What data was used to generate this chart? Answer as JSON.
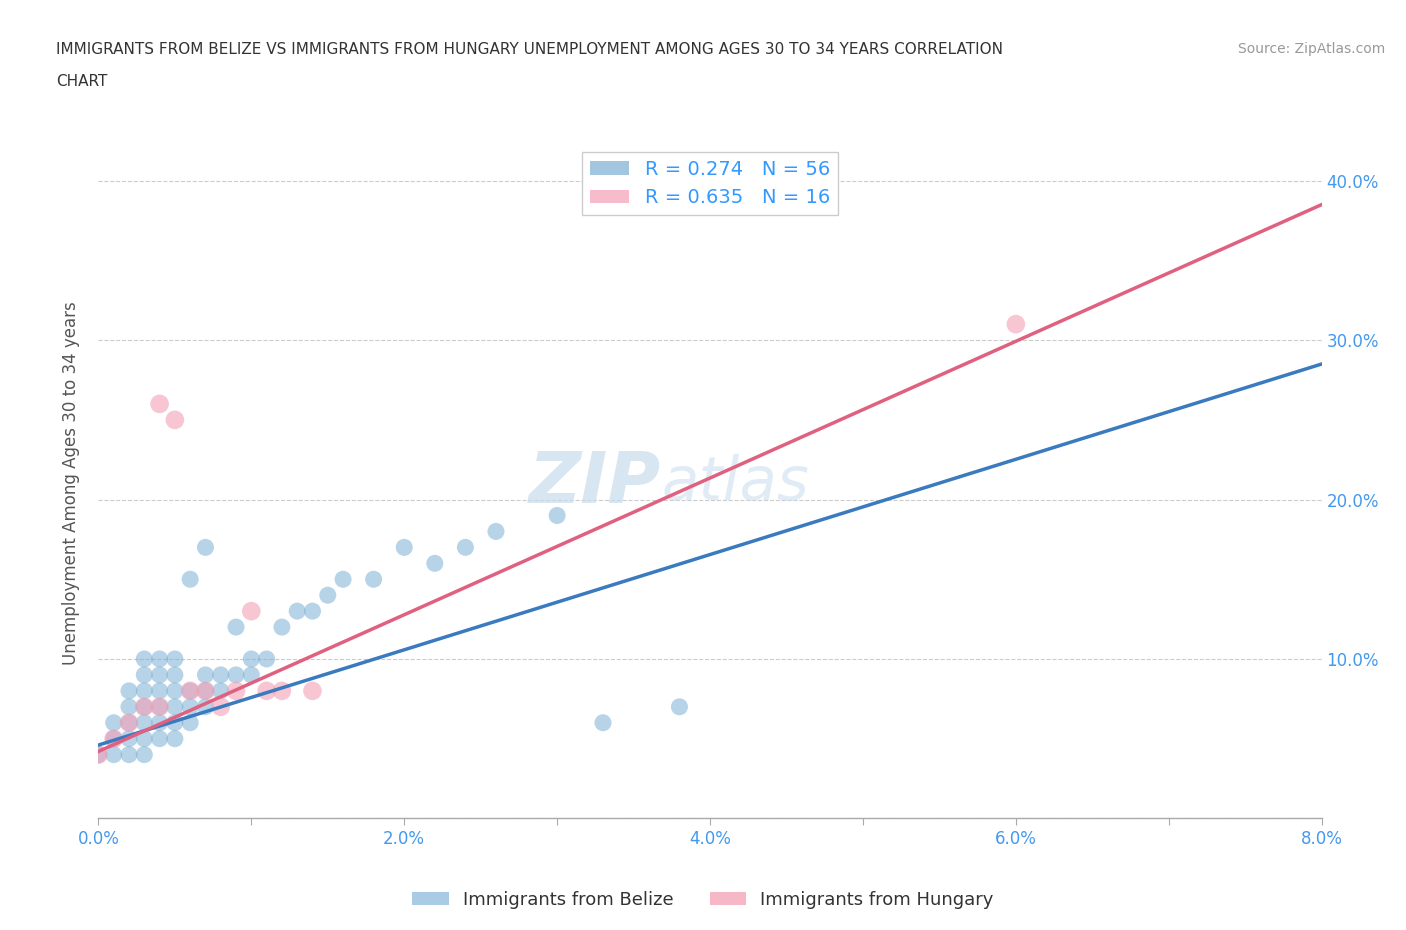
{
  "title_line1": "IMMIGRANTS FROM BELIZE VS IMMIGRANTS FROM HUNGARY UNEMPLOYMENT AMONG AGES 30 TO 34 YEARS CORRELATION",
  "title_line2": "CHART",
  "source_text": "Source: ZipAtlas.com",
  "ylabel": "Unemployment Among Ages 30 to 34 years",
  "xlim": [
    0.0,
    0.08
  ],
  "ylim": [
    0.0,
    0.42
  ],
  "xticks": [
    0.0,
    0.01,
    0.02,
    0.03,
    0.04,
    0.05,
    0.06,
    0.07,
    0.08
  ],
  "xticklabels": [
    "0.0%",
    "",
    "2.0%",
    "",
    "4.0%",
    "",
    "6.0%",
    "",
    "8.0%"
  ],
  "ytick_positions": [
    0.0,
    0.1,
    0.2,
    0.3,
    0.4
  ],
  "ytick_labels_left": [
    "",
    "",
    "",
    "",
    ""
  ],
  "ytick_labels_right": [
    "",
    "10.0%",
    "20.0%",
    "30.0%",
    "40.0%"
  ],
  "belize_color": "#7bafd4",
  "hungary_color": "#f4a0b5",
  "belize_R": 0.274,
  "belize_N": 56,
  "hungary_R": 0.635,
  "hungary_N": 16,
  "watermark_zip": "ZIP",
  "watermark_atlas": "atlas",
  "belize_x": [
    0.0,
    0.001,
    0.001,
    0.001,
    0.002,
    0.002,
    0.002,
    0.002,
    0.002,
    0.003,
    0.003,
    0.003,
    0.003,
    0.003,
    0.003,
    0.003,
    0.004,
    0.004,
    0.004,
    0.004,
    0.004,
    0.004,
    0.005,
    0.005,
    0.005,
    0.005,
    0.005,
    0.005,
    0.006,
    0.006,
    0.006,
    0.006,
    0.007,
    0.007,
    0.007,
    0.007,
    0.008,
    0.008,
    0.009,
    0.009,
    0.01,
    0.01,
    0.011,
    0.012,
    0.013,
    0.014,
    0.015,
    0.016,
    0.018,
    0.02,
    0.022,
    0.024,
    0.026,
    0.03,
    0.033,
    0.038
  ],
  "belize_y": [
    0.04,
    0.04,
    0.05,
    0.06,
    0.04,
    0.05,
    0.06,
    0.07,
    0.08,
    0.04,
    0.05,
    0.06,
    0.07,
    0.08,
    0.09,
    0.1,
    0.05,
    0.06,
    0.07,
    0.08,
    0.09,
    0.1,
    0.05,
    0.06,
    0.07,
    0.08,
    0.09,
    0.1,
    0.06,
    0.07,
    0.08,
    0.15,
    0.07,
    0.08,
    0.09,
    0.17,
    0.08,
    0.09,
    0.09,
    0.12,
    0.09,
    0.1,
    0.1,
    0.12,
    0.13,
    0.13,
    0.14,
    0.15,
    0.15,
    0.17,
    0.16,
    0.17,
    0.18,
    0.19,
    0.06,
    0.07
  ],
  "hungary_x": [
    0.0,
    0.001,
    0.002,
    0.003,
    0.004,
    0.004,
    0.005,
    0.006,
    0.007,
    0.008,
    0.009,
    0.01,
    0.011,
    0.012,
    0.014,
    0.06
  ],
  "hungary_y": [
    0.04,
    0.05,
    0.06,
    0.07,
    0.26,
    0.07,
    0.25,
    0.08,
    0.08,
    0.07,
    0.08,
    0.13,
    0.08,
    0.08,
    0.08,
    0.31
  ],
  "belize_trend_x": [
    0.0,
    0.08
  ],
  "belize_trend_y": [
    0.046,
    0.285
  ],
  "hungary_trend_x": [
    0.0,
    0.08
  ],
  "hungary_trend_y": [
    0.042,
    0.385
  ],
  "background_color": "#ffffff",
  "grid_color": "#cccccc"
}
